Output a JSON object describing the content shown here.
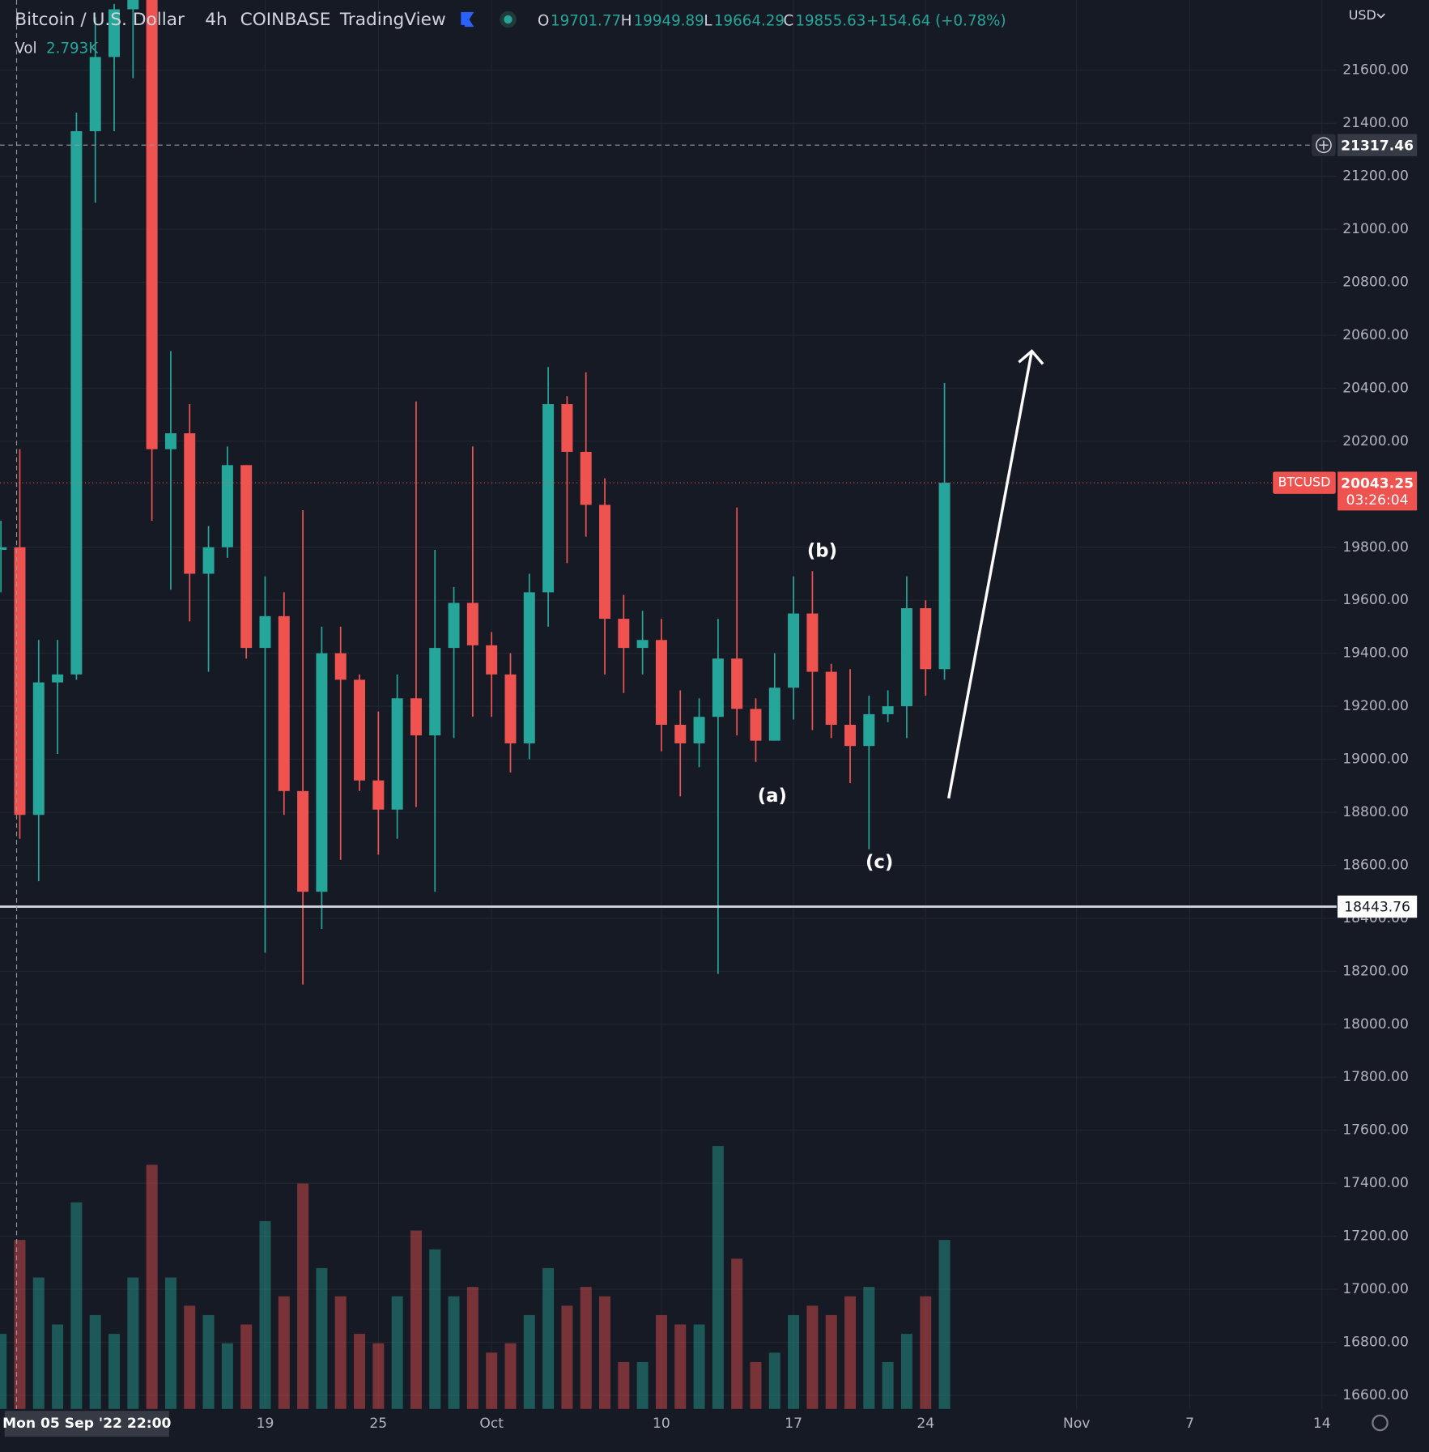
{
  "header": {
    "symbol": "Bitcoin / U.S. Dollar",
    "interval": "4h",
    "exchange": "COINBASE",
    "source": "TradingView",
    "ohlc": [
      {
        "key": "O",
        "value": 19701.77
      },
      {
        "key": "H",
        "value": 19949.89
      },
      {
        "key": "L",
        "value": 19664.29
      },
      {
        "key": "C",
        "value": 19855.63
      }
    ],
    "change": "+154.64 (+0.78%)",
    "volume_label": "Vol",
    "volume_value": "2.793K",
    "currency": "USD"
  },
  "chart_data": {
    "type": "candlestick",
    "up_color": "#26a69a",
    "down_color": "#ef5350",
    "grid": true,
    "x": [
      5,
      6,
      7,
      8,
      9,
      10,
      11,
      12,
      13,
      14,
      15,
      16,
      17,
      18,
      19,
      20,
      21,
      22,
      23,
      24,
      25,
      26,
      27,
      28,
      29,
      30,
      31,
      32,
      33,
      34,
      35,
      36,
      37,
      38,
      39,
      40,
      41,
      42,
      43,
      44,
      45,
      46,
      47,
      48,
      49,
      50,
      51,
      52,
      53,
      54,
      55
    ],
    "open": [
      19790,
      19800,
      18790,
      19290,
      19320,
      21370,
      21650,
      21830,
      22400,
      20170,
      20230,
      19700,
      19800,
      20110,
      19420,
      19540,
      18880,
      18500,
      19400,
      19300,
      18920,
      18810,
      19230,
      19090,
      19420,
      19590,
      19430,
      19320,
      19060,
      19630,
      20340,
      20160,
      19960,
      19530,
      19420,
      19450,
      19130,
      19060,
      19160,
      19380,
      19190,
      19070,
      19270,
      19550,
      19330,
      19130,
      19050,
      19170,
      19200,
      19570,
      19340
    ],
    "high": [
      19900,
      20170,
      19450,
      19450,
      21440,
      21800,
      21850,
      22450,
      22790,
      20540,
      20340,
      19880,
      20180,
      20110,
      19690,
      19630,
      19940,
      19500,
      19500,
      19320,
      19180,
      19320,
      20350,
      19790,
      19650,
      20180,
      19480,
      19400,
      19700,
      20480,
      20370,
      20460,
      20060,
      19620,
      19560,
      19530,
      19260,
      19230,
      19530,
      19950,
      19230,
      19400,
      19690,
      19710,
      19360,
      19340,
      19240,
      19260,
      19690,
      19600,
      20420
    ],
    "low": [
      19630,
      18700,
      18540,
      19020,
      19300,
      21100,
      21370,
      21570,
      19900,
      19640,
      19520,
      19330,
      19760,
      19380,
      18270,
      18790,
      18150,
      18360,
      18620,
      18880,
      18640,
      18700,
      18820,
      18500,
      19080,
      19160,
      19160,
      18950,
      19000,
      19500,
      19740,
      19840,
      19320,
      19250,
      19320,
      19030,
      18860,
      18970,
      18190,
      19090,
      18990,
      19070,
      19150,
      19110,
      19080,
      18910,
      18660,
      19140,
      19080,
      19240,
      19300
    ],
    "close": [
      19800,
      18790,
      19290,
      19320,
      21370,
      21650,
      21830,
      22400,
      20170,
      20230,
      19700,
      19800,
      20110,
      19420,
      19540,
      18880,
      18500,
      19400,
      19300,
      18920,
      18810,
      19230,
      19090,
      19420,
      19590,
      19430,
      19320,
      19060,
      19630,
      20340,
      20160,
      19960,
      19530,
      19420,
      19450,
      19130,
      19060,
      19160,
      19380,
      19190,
      19070,
      19270,
      19550,
      19330,
      19130,
      19050,
      19170,
      19200,
      19570,
      19340,
      20043.25
    ],
    "volume": [
      8,
      18,
      14,
      9,
      22,
      10,
      8,
      14,
      26,
      14,
      11,
      10,
      7,
      9,
      20,
      12,
      24,
      15,
      12,
      8,
      7,
      12,
      19,
      17,
      12,
      13,
      6,
      7,
      10,
      15,
      11,
      13,
      12,
      5,
      5,
      10,
      9,
      9,
      28,
      16,
      5,
      6,
      10,
      11,
      10,
      12,
      13,
      5,
      8,
      12,
      18
    ],
    "volume_ylim": [
      0,
      150
    ],
    "xlim": [
      4.95,
      75.78
    ],
    "xticks": [
      {
        "value": 19,
        "label": "19"
      },
      {
        "value": 25,
        "label": "25"
      },
      {
        "value": 31,
        "label": "Oct"
      },
      {
        "value": 40,
        "label": "10"
      },
      {
        "value": 47,
        "label": "17"
      },
      {
        "value": 54,
        "label": "24"
      },
      {
        "value": 62,
        "label": "Nov"
      },
      {
        "value": 68,
        "label": "7"
      },
      {
        "value": 75,
        "label": "14"
      }
    ],
    "ylim": [
      16548,
      21865
    ],
    "yticks": [
      {
        "value": 16600,
        "label": "16600.00"
      },
      {
        "value": 16800,
        "label": "16800.00"
      },
      {
        "value": 17000,
        "label": "17000.00"
      },
      {
        "value": 17200,
        "label": "17200.00"
      },
      {
        "value": 17400,
        "label": "17400.00"
      },
      {
        "value": 17600,
        "label": "17600.00"
      },
      {
        "value": 17800,
        "label": "17800.00"
      },
      {
        "value": 18000,
        "label": "18000.00"
      },
      {
        "value": 18200,
        "label": "18200.00"
      },
      {
        "value": 18400,
        "label": "18400.00"
      },
      {
        "value": 18600,
        "label": "18600.00"
      },
      {
        "value": 18800,
        "label": "18800.00"
      },
      {
        "value": 19000,
        "label": "19000.00"
      },
      {
        "value": 19200,
        "label": "19200.00"
      },
      {
        "value": 19400,
        "label": "19400.00"
      },
      {
        "value": 19600,
        "label": "19600.00"
      },
      {
        "value": 19800,
        "label": "19800.00"
      },
      {
        "value": 20200,
        "label": "20200.00"
      },
      {
        "value": 20400,
        "label": "20400.00"
      },
      {
        "value": 20600,
        "label": "20600.00"
      },
      {
        "value": 20800,
        "label": "20800.00"
      },
      {
        "value": 21000,
        "label": "21000.00"
      },
      {
        "value": 21200,
        "label": "21200.00"
      },
      {
        "value": 21400,
        "label": "21400.00"
      },
      {
        "value": 21600,
        "label": "21600.00"
      }
    ],
    "crosshair_x": {
      "value": 5.83,
      "label": "Mon 05 Sep '22  22:00"
    },
    "crosshair_y": 21317.46,
    "hline": 18443.76,
    "last_price": 20043.25,
    "symbol_tag": "BTCUSD",
    "countdown": "03:26:04",
    "annotations": [
      "(a)",
      "(b)",
      "(c)"
    ]
  }
}
